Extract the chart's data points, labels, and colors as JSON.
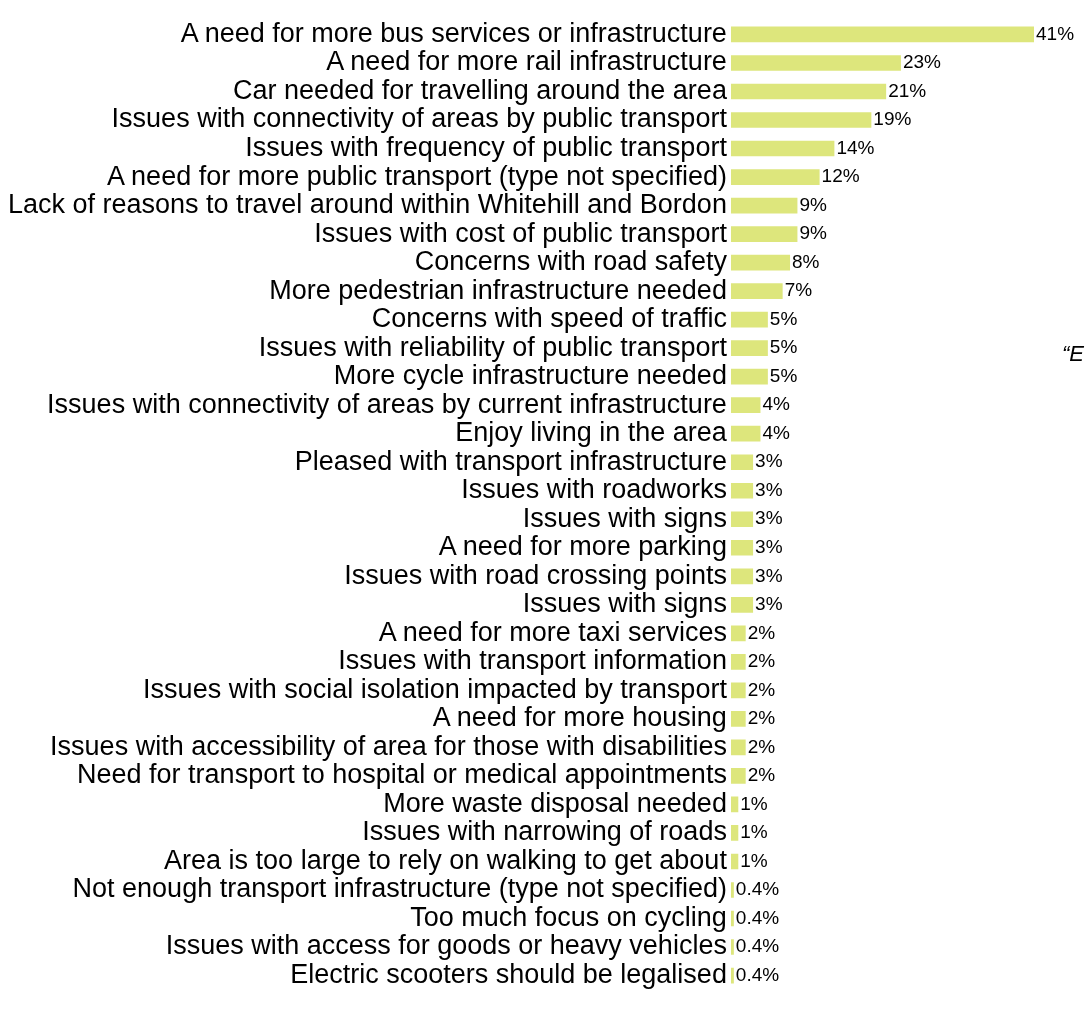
{
  "chart_data": {
    "type": "bar",
    "orientation": "horizontal",
    "tick_labels": "y",
    "grid": false,
    "legend": false,
    "categories": [
      "A need for more bus services or infrastructure",
      "A need for more rail infrastructure",
      "Car needed for travelling around the area",
      "Issues with connectivity of areas by public transport",
      "Issues with frequency of public transport",
      "A need for more public transport (type not specified)",
      "Lack of reasons to travel around within Whitehill and Bordon",
      "Issues with cost of public transport",
      "Concerns with road safety",
      "More pedestrian infrastructure needed",
      "Concerns with speed of traffic",
      "Issues with reliability of public transport",
      "More cycle infrastructure needed",
      "Issues with connectivity of areas by current infrastructure",
      "Enjoy living in the area",
      "Pleased with transport infrastructure",
      "Issues with roadworks",
      "Issues with signs",
      "A need for more parking",
      "Issues with road crossing points",
      "Issues with signs",
      "A need for more taxi services",
      "Issues with transport information",
      "Issues with social isolation impacted by transport",
      "A need for more housing",
      "Issues with accessibility of area for those with disabilities",
      "Need for transport to hospital or medical appointments",
      "More waste disposal needed",
      "Issues with narrowing of roads",
      "Area is too large to rely on walking to get about",
      "Not enough transport infrastructure (type not specified)",
      "Too much focus on cycling",
      "Issues with access for goods or heavy vehicles",
      "Electric scooters should be legalised"
    ],
    "values": [
      41,
      23,
      21,
      19,
      14,
      12,
      9,
      9,
      8,
      7,
      5,
      5,
      5,
      4,
      4,
      3,
      3,
      3,
      3,
      3,
      3,
      2,
      2,
      2,
      2,
      2,
      2,
      1,
      1,
      1,
      0.4,
      0.4,
      0.4,
      0.4
    ],
    "value_labels": [
      "41%",
      "23%",
      "21%",
      "19%",
      "14%",
      "12%",
      "9%",
      "9%",
      "8%",
      "7%",
      "5%",
      "5%",
      "5%",
      "4%",
      "4%",
      "3%",
      "3%",
      "3%",
      "3%",
      "3%",
      "3%",
      "2%",
      "2%",
      "2%",
      "2%",
      "2%",
      "2%",
      "1%",
      "1%",
      "1%",
      "0.4%",
      "0.4%",
      "0.4%",
      "0.4%"
    ],
    "color": "#dde67c",
    "xlim": [
      0,
      41
    ],
    "annotations": [
      "“E"
    ]
  }
}
